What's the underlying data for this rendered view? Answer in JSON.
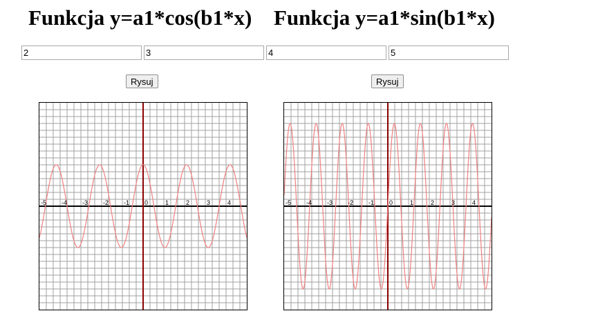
{
  "titles": {
    "cos": "Funkcja y=a1*cos(b1*x)",
    "sin": "Funkcja y=a1*sin(b1*x)"
  },
  "inputs": {
    "a1": "2",
    "b1": "3",
    "a2": "4",
    "b2": "5"
  },
  "buttons": {
    "cos_label": "Rysuj",
    "sin_label": "Rysuj"
  },
  "colors": {
    "grid": "#a0a0a0",
    "x_axis": "#000000",
    "y_axis": "#8b0000",
    "curve": "#f08080",
    "border": "#000000"
  },
  "chart_data": [
    {
      "type": "line",
      "function": "cos",
      "amplitude": 2,
      "frequency": 3,
      "xlim": [
        -5,
        5
      ],
      "ylim": [
        -5,
        5
      ],
      "x_tick_labels": [
        "-5",
        "-4",
        "-3",
        "-2",
        "-1",
        "0",
        "1",
        "2",
        "3",
        "4"
      ],
      "grid": true
    },
    {
      "type": "line",
      "function": "sin",
      "amplitude": 4,
      "frequency": 5,
      "xlim": [
        -5,
        5
      ],
      "ylim": [
        -5,
        5
      ],
      "x_tick_labels": [
        "-5",
        "-4",
        "-3",
        "-2",
        "-1",
        "0",
        "1",
        "2",
        "3",
        "4"
      ],
      "grid": true
    }
  ]
}
